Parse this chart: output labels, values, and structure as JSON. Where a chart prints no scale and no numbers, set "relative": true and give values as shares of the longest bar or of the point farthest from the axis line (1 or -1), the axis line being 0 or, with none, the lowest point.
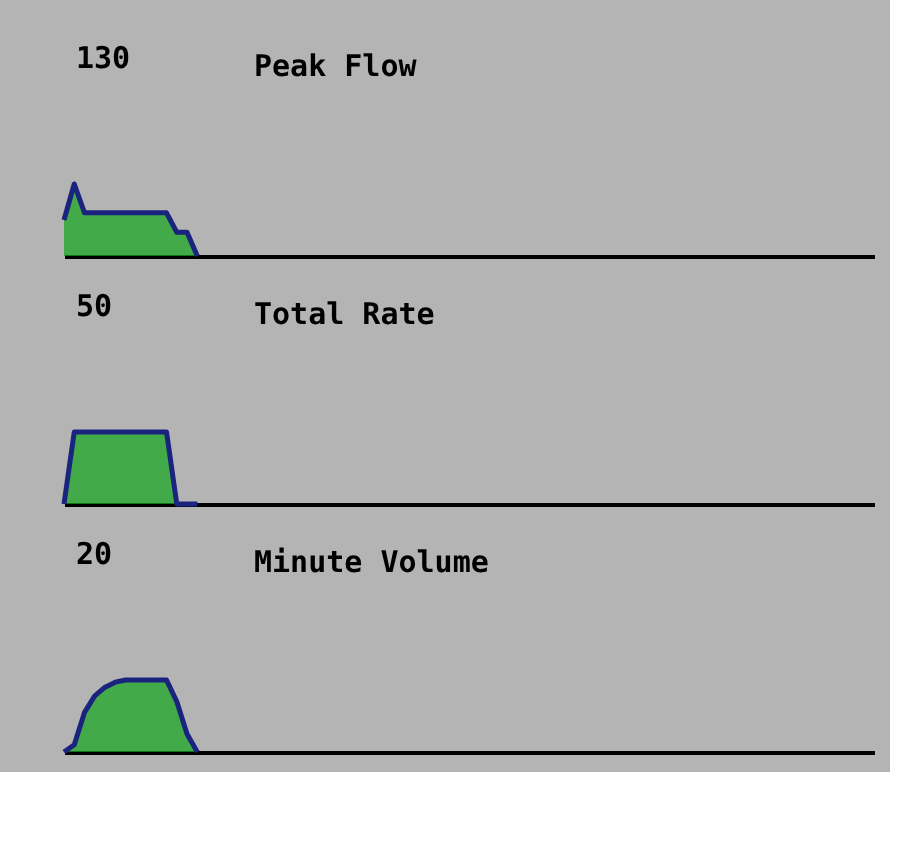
{
  "chart_data": [
    {
      "type": "area",
      "title": "Peak Flow",
      "annotations": [
        "130"
      ],
      "relative": true,
      "categories": [
        null,
        null,
        null,
        null,
        null,
        null,
        null,
        null,
        null,
        null,
        null,
        null,
        null,
        null,
        null,
        null,
        null,
        null,
        null,
        null,
        null,
        null,
        null,
        null,
        null,
        null,
        null,
        null,
        null,
        null,
        null,
        null,
        null,
        null,
        null,
        null,
        null,
        null,
        null,
        null,
        null,
        null,
        null,
        null,
        null,
        null,
        null,
        null,
        null,
        null,
        null,
        null,
        null,
        null,
        null,
        null,
        null,
        null,
        null,
        null,
        null,
        null,
        null,
        null,
        null,
        null,
        null,
        null,
        null,
        null,
        null,
        null,
        null,
        null,
        null,
        null,
        null,
        null,
        null,
        null
      ],
      "series": [
        {
          "color": "#12a51c",
          "values": [
            0.5,
            1.0,
            0.6,
            0.6,
            0.6,
            0.6,
            0.6,
            0.6,
            0.6,
            0.6,
            0.6,
            0.33,
            0.33,
            0,
            null,
            null,
            null,
            null,
            null,
            null,
            null,
            null,
            null,
            null,
            null,
            null,
            null,
            null,
            null,
            null,
            null,
            null,
            null,
            null,
            null,
            null,
            null,
            null,
            null,
            null,
            null,
            null,
            null,
            null,
            null,
            null,
            null,
            null,
            null,
            null,
            null,
            null,
            null,
            null,
            null,
            null,
            null,
            null,
            null,
            null,
            null,
            null,
            null,
            null,
            null,
            null,
            null,
            null,
            null,
            null,
            null,
            null,
            null,
            null,
            null,
            null,
            null,
            null,
            null,
            null
          ]
        }
      ]
    },
    {
      "type": "area",
      "title": "Total Rate",
      "annotations": [
        "50"
      ],
      "relative": true,
      "categories": [
        null,
        null,
        null,
        null,
        null,
        null,
        null,
        null,
        null,
        null,
        null,
        null,
        null,
        null,
        null,
        null,
        null,
        null,
        null,
        null,
        null,
        null,
        null,
        null,
        null,
        null,
        null,
        null,
        null,
        null,
        null,
        null,
        null,
        null,
        null,
        null,
        null,
        null,
        null,
        null,
        null,
        null,
        null,
        null,
        null,
        null,
        null,
        null,
        null,
        null,
        null,
        null,
        null,
        null,
        null,
        null,
        null,
        null,
        null,
        null,
        null,
        null,
        null,
        null,
        null,
        null,
        null,
        null,
        null,
        null,
        null,
        null,
        null,
        null,
        null,
        null,
        null,
        null,
        null,
        null
      ],
      "series": [
        {
          "color": "#12a51c",
          "values": [
            0,
            1,
            1,
            1,
            1,
            1,
            1,
            1,
            1,
            1,
            1,
            0,
            0,
            0,
            null,
            null,
            null,
            null,
            null,
            null,
            null,
            null,
            null,
            null,
            null,
            null,
            null,
            null,
            null,
            null,
            null,
            null,
            null,
            null,
            null,
            null,
            null,
            null,
            null,
            null,
            null,
            null,
            null,
            null,
            null,
            null,
            null,
            null,
            null,
            null,
            null,
            null,
            null,
            null,
            null,
            null,
            null,
            null,
            null,
            null,
            null,
            null,
            null,
            null,
            null,
            null,
            null,
            null,
            null,
            null,
            null,
            null,
            null,
            null,
            null,
            null,
            null,
            null,
            null,
            null
          ]
        }
      ]
    },
    {
      "type": "area",
      "title": "Minute Volume",
      "annotations": [
        "20"
      ],
      "relative": true,
      "categories": [
        null,
        null,
        null,
        null,
        null,
        null,
        null,
        null,
        null,
        null,
        null,
        null,
        null,
        null,
        null,
        null,
        null,
        null,
        null,
        null,
        null,
        null,
        null,
        null,
        null,
        null,
        null,
        null,
        null,
        null,
        null,
        null,
        null,
        null,
        null,
        null,
        null,
        null,
        null,
        null,
        null,
        null,
        null,
        null,
        null,
        null,
        null,
        null,
        null,
        null,
        null,
        null,
        null,
        null,
        null,
        null,
        null,
        null,
        null,
        null,
        null,
        null,
        null,
        null,
        null,
        null,
        null,
        null,
        null,
        null,
        null,
        null,
        null,
        null,
        null,
        null,
        null,
        null,
        null,
        null
      ],
      "series": [
        {
          "color": "#12a51c",
          "values": [
            0,
            0.1,
            0.55,
            0.78,
            0.9,
            0.97,
            1,
            1,
            1,
            1,
            1,
            0.7,
            0.25,
            0,
            null,
            null,
            null,
            null,
            null,
            null,
            null,
            null,
            null,
            null,
            null,
            null,
            null,
            null,
            null,
            null,
            null,
            null,
            null,
            null,
            null,
            null,
            null,
            null,
            null,
            null,
            null,
            null,
            null,
            null,
            null,
            null,
            null,
            null,
            null,
            null,
            null,
            null,
            null,
            null,
            null,
            null,
            null,
            null,
            null,
            null,
            null,
            null,
            null,
            null,
            null,
            null,
            null,
            null,
            null,
            null,
            null,
            null,
            null,
            null,
            null,
            null,
            null,
            null,
            null,
            null
          ]
        }
      ]
    }
  ]
}
